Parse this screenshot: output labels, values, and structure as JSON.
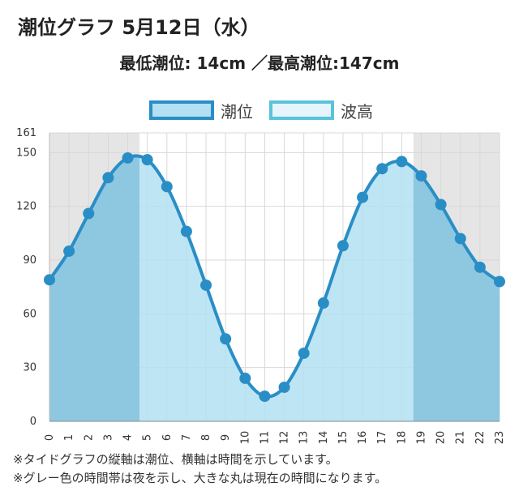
{
  "header": {
    "title": "潮位グラフ 5月12日（水）",
    "subtitle": "最低潮位: 14cm ／最高潮位:147cm"
  },
  "legend": [
    {
      "label": "潮位",
      "fill": "#b3e0f2",
      "border": "#2a8ec6"
    },
    {
      "label": "波高",
      "fill": "#e6f5fb",
      "border": "#5ac3dc"
    }
  ],
  "notes": [
    "※タイドグラフの縦軸は潮位、横軸は時間を示しています。",
    "※グレー色の時間帯は夜を示し、大きな丸は現在の時間になります。"
  ],
  "chart_data": {
    "type": "area",
    "x": [
      0,
      1,
      2,
      3,
      4,
      5,
      6,
      7,
      8,
      9,
      10,
      11,
      12,
      13,
      14,
      15,
      16,
      17,
      18,
      19,
      20,
      21,
      22,
      23
    ],
    "series": [
      {
        "name": "潮位",
        "values": [
          79,
          95,
          116,
          136,
          147,
          146,
          131,
          106,
          76,
          46,
          24,
          14,
          19,
          38,
          66,
          98,
          125,
          141,
          145,
          137,
          121,
          102,
          86,
          78
        ]
      }
    ],
    "ylim": [
      0,
      161
    ],
    "yticks": [
      0,
      30,
      60,
      90,
      120,
      150,
      161
    ],
    "night_ranges": [
      [
        0,
        4.6
      ],
      [
        18.6,
        23
      ]
    ],
    "grid": true,
    "legend_position": "top",
    "colors": {
      "line": "#2a8ec6",
      "area_day": "#b3e0f2",
      "area_night": "#8ec7e0",
      "night_bg": "#e5e5e5",
      "grid": "#d8d8d8"
    }
  }
}
